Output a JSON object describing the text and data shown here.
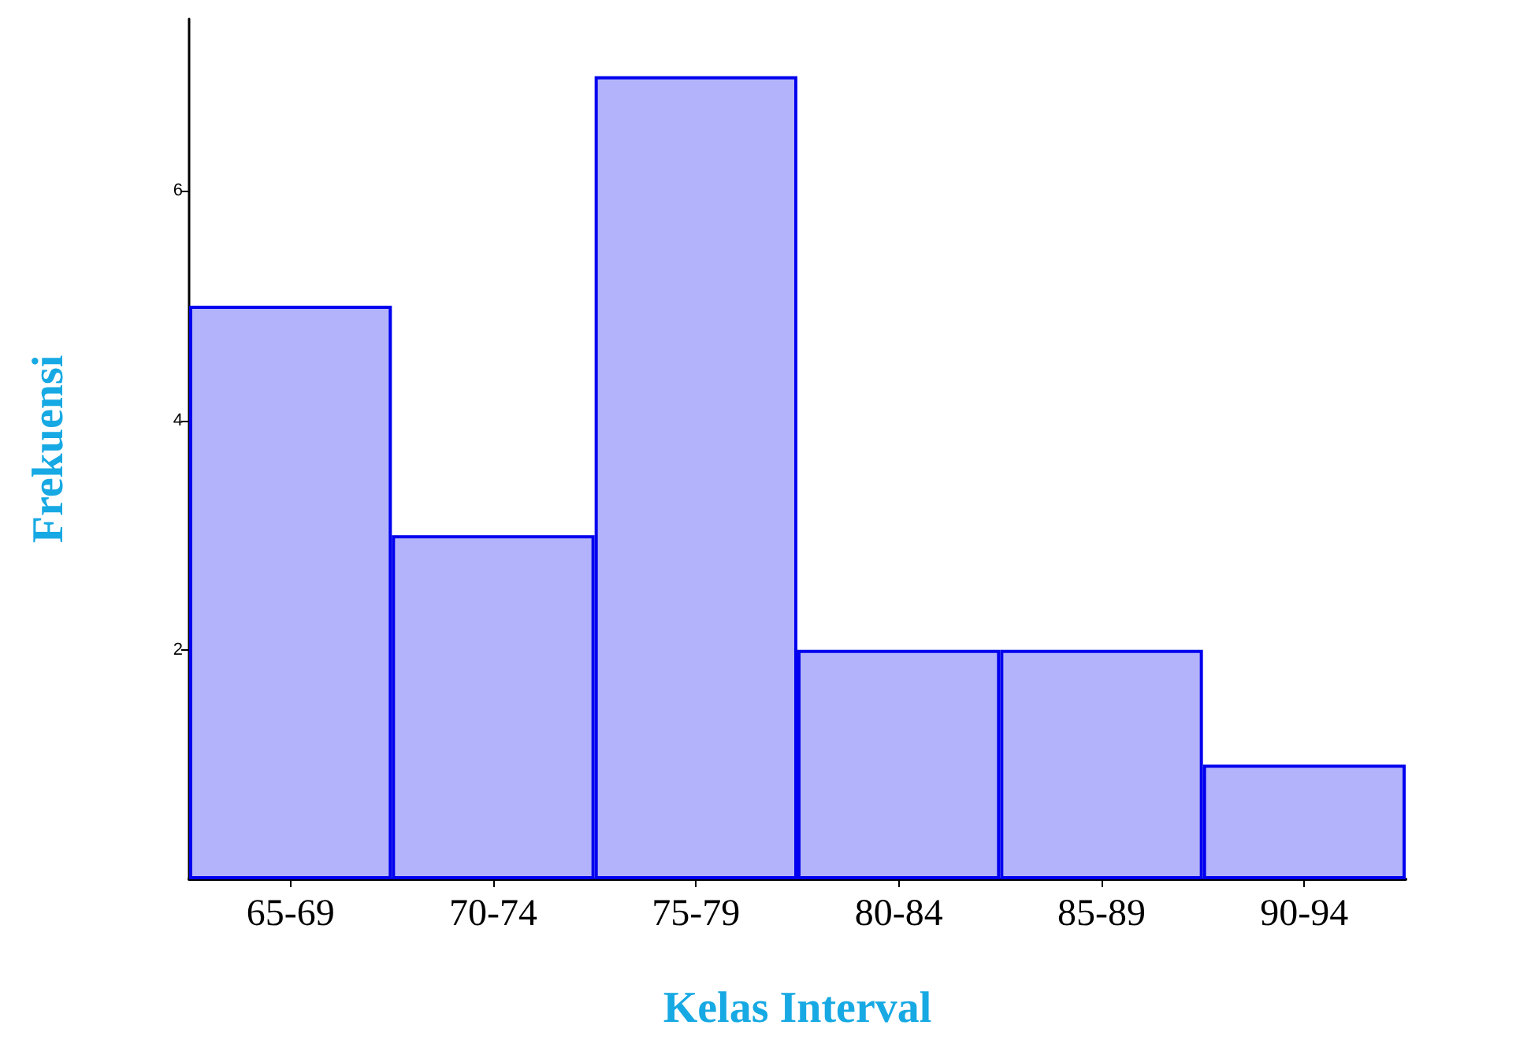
{
  "chart_data": {
    "type": "bar",
    "xlabel": "Kelas Interval",
    "ylabel": "Frekuensi",
    "categories": [
      "65-69",
      "70-74",
      "75-79",
      "80-84",
      "85-89",
      "90-94"
    ],
    "values": [
      5,
      3,
      7,
      2,
      2,
      1
    ],
    "color": "#b3b3fb",
    "ylim": [
      0,
      7.5
    ],
    "yticks": [
      2,
      4,
      6
    ],
    "grid": false
  }
}
